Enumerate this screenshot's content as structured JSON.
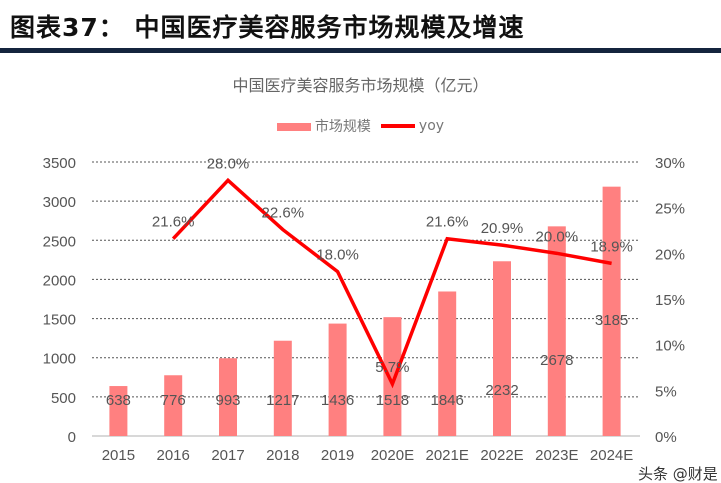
{
  "header": {
    "title": "图表37：  中国医疗美容服务市场规模及增速"
  },
  "watermark": "头条 @财是",
  "chart_data": {
    "type": "bar+line",
    "title": "中国医疗美容服务市场规模（亿元）",
    "categories": [
      "2015",
      "2016",
      "2017",
      "2018",
      "2019",
      "2020E",
      "2021E",
      "2022E",
      "2023E",
      "2024E"
    ],
    "series": [
      {
        "name": "市场规模",
        "type": "bar",
        "axis": "left",
        "color": "#ff8080",
        "values": [
          638,
          776,
          993,
          1217,
          1436,
          1518,
          1846,
          2232,
          2678,
          3185
        ]
      },
      {
        "name": "yoy",
        "type": "line",
        "axis": "right",
        "color": "#ff0000",
        "values": [
          null,
          21.6,
          28.0,
          22.6,
          18.0,
          5.7,
          21.6,
          20.9,
          20.0,
          18.9
        ]
      }
    ],
    "left_axis": {
      "ylim": [
        0,
        3500
      ],
      "ticks": [
        "0",
        "500",
        "1000",
        "1500",
        "2000",
        "2500",
        "3000",
        "3500"
      ]
    },
    "right_axis": {
      "ylim": [
        0,
        30
      ],
      "ticks": [
        "0%",
        "5%",
        "10%",
        "15%",
        "20%",
        "25%",
        "30%"
      ]
    },
    "grid": true,
    "legend": "top"
  }
}
